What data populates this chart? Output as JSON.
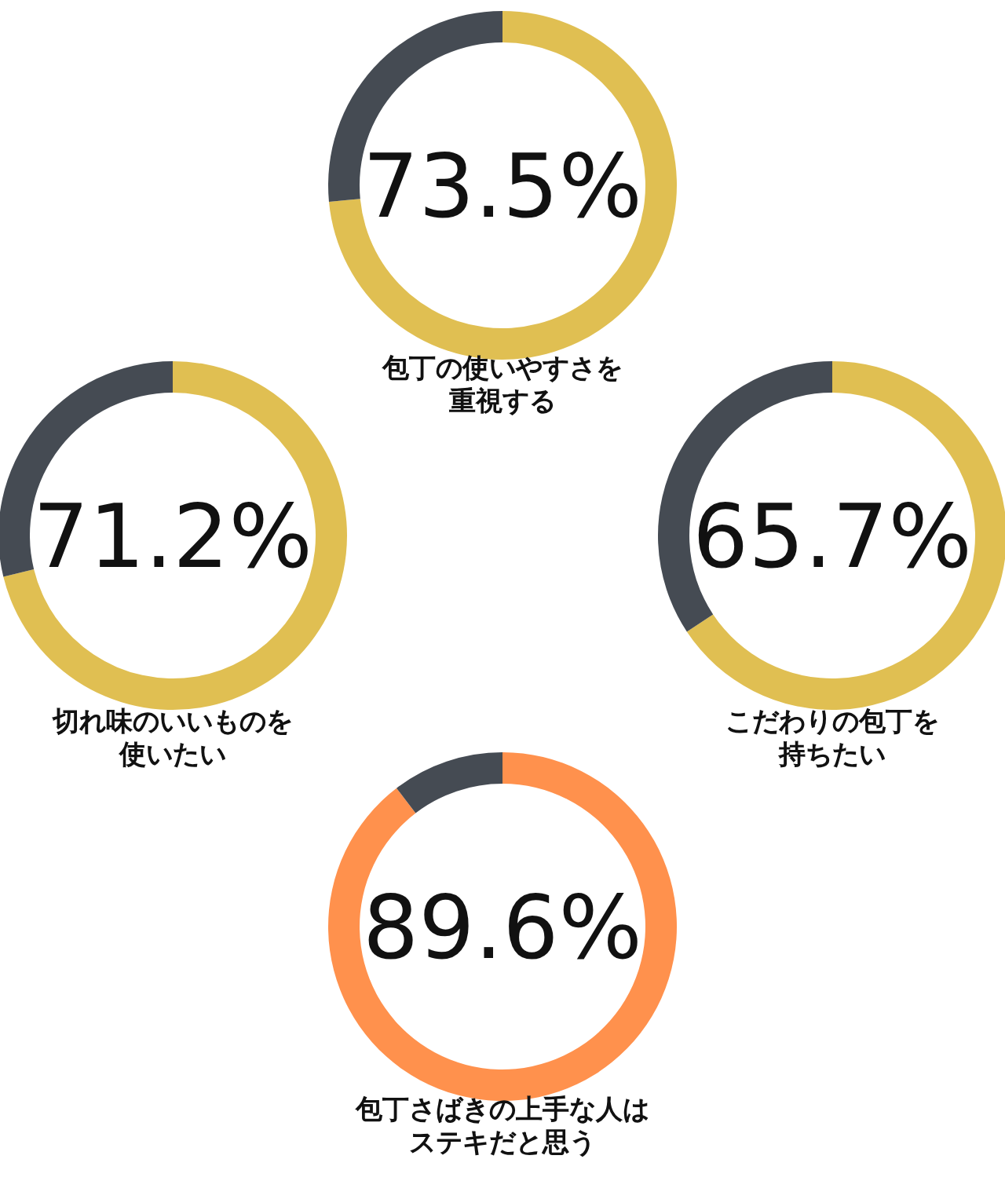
{
  "chart_data": [
    {
      "type": "donut",
      "title": "包丁の使いやすさを重視する",
      "categories": [
        null,
        null
      ],
      "values": [
        73.5,
        26.5
      ],
      "colors": [
        "#e0bf52",
        "#454b53"
      ],
      "value_labels": [
        "73.5%",
        null
      ]
    },
    {
      "type": "donut",
      "title": "切れ味のいいものを使いたい",
      "categories": [
        null,
        null
      ],
      "values": [
        71.2,
        28.8
      ],
      "colors": [
        "#e0bf52",
        "#454b53"
      ],
      "value_labels": [
        "71.2%",
        null
      ]
    },
    {
      "type": "donut",
      "title": "こだわりの包丁を持ちたい",
      "categories": [
        null,
        null
      ],
      "values": [
        65.7,
        34.3
      ],
      "colors": [
        "#e0bf52",
        "#454b53"
      ],
      "value_labels": [
        "65.7%",
        null
      ]
    },
    {
      "type": "donut",
      "title": "包丁さばきの上手な人はステキだと思う",
      "categories": [
        null,
        null
      ],
      "values": [
        89.6,
        10.4
      ],
      "colors": [
        "#ff914d",
        "#454b53"
      ],
      "value_labels": [
        "89.6%",
        null
      ]
    }
  ]
}
